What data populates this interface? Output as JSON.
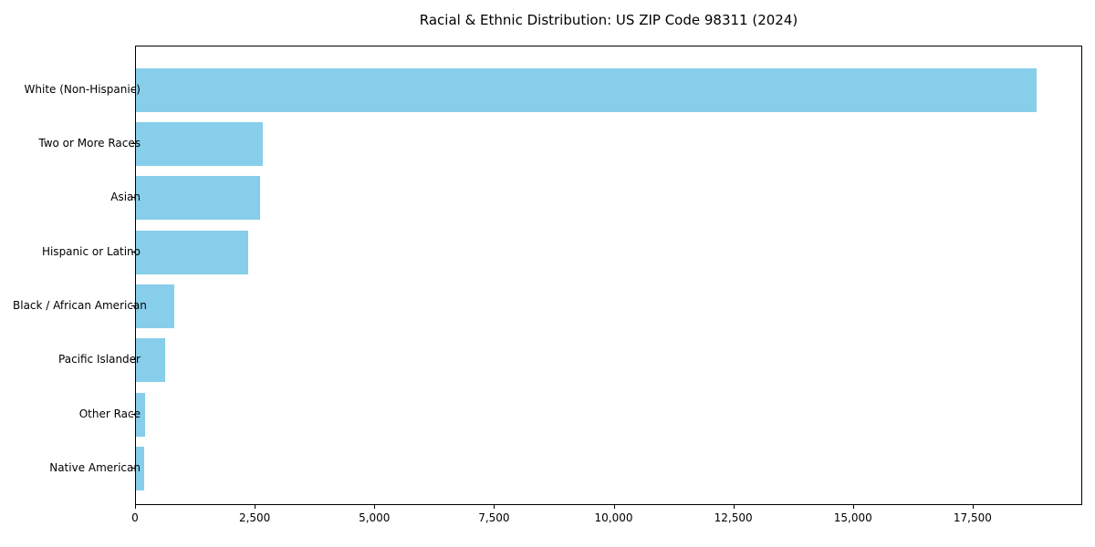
{
  "chart_data": {
    "type": "bar",
    "orientation": "horizontal",
    "title": "Racial & Ethnic Distribution: US ZIP Code 98311 (2024)",
    "categories": [
      "White (Non-Hispanic)",
      "Two or More Races",
      "Asian",
      "Hispanic or Latino",
      "Black / African American",
      "Pacific Islander",
      "Other Race",
      "Native American"
    ],
    "values": [
      18845,
      2655,
      2590,
      2345,
      810,
      605,
      195,
      175
    ],
    "xlabel": "",
    "ylabel": "",
    "xlim": [
      0,
      19790
    ],
    "x_ticks": [
      0,
      2500,
      5000,
      7500,
      10000,
      12500,
      15000,
      17500
    ],
    "x_tick_labels": [
      "0",
      "2,500",
      "5,000",
      "7,500",
      "10,000",
      "12,500",
      "15,000",
      "17,500"
    ],
    "bar_color": "#87CEEB",
    "axis_color": "#000000",
    "background_color": "#ffffff",
    "grid": false,
    "legend": null
  }
}
